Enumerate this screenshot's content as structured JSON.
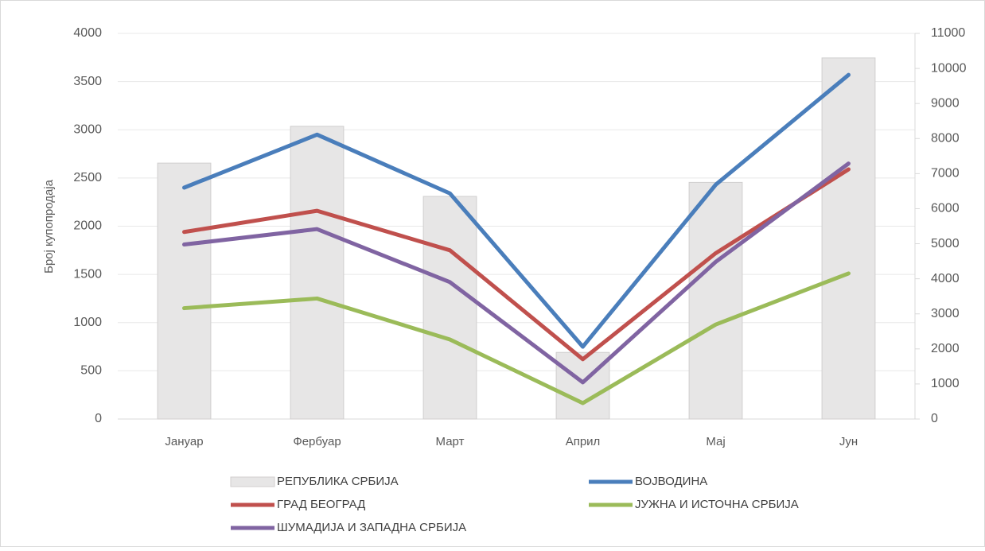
{
  "chart_data": {
    "type": "bar-line",
    "y_label": "Број купопродаја",
    "categories": [
      "Јануар",
      "Фербуар",
      "Март",
      "Април",
      "Мај",
      "Јун"
    ],
    "series": [
      {
        "name": "РЕПУБЛИКА СРБИЈА",
        "type": "bar",
        "axis": "y2",
        "color": "#e7e6e6",
        "values": [
          7300,
          8350,
          6350,
          1900,
          6750,
          10300
        ]
      },
      {
        "name": "ВОЈВОДИНА",
        "type": "line",
        "color": "#4a7ebb",
        "values": [
          2400,
          2950,
          2340,
          750,
          2430,
          3570
        ]
      },
      {
        "name": "ГРАД БЕОГРАД",
        "type": "line",
        "color": "#c0504d",
        "values": [
          1940,
          2160,
          1750,
          620,
          1720,
          2590
        ]
      },
      {
        "name": "ЈУЖНА И ИСТОЧНА СРБИЈА",
        "type": "line",
        "color": "#9bbb59",
        "values": [
          1150,
          1250,
          825,
          165,
          980,
          1510
        ]
      },
      {
        "name": "ШУМАДИЈА И ЗАПАДНА СРБИЈА",
        "type": "line",
        "color": "#8064a2",
        "values": [
          1810,
          1970,
          1420,
          380,
          1630,
          2650
        ]
      }
    ],
    "ylim": [
      0,
      4000
    ],
    "yticks": [
      0,
      500,
      1000,
      1500,
      2000,
      2500,
      3000,
      3500,
      4000
    ],
    "y2lim": [
      0,
      11000
    ],
    "y2ticks": [
      0,
      1000,
      2000,
      3000,
      4000,
      5000,
      6000,
      7000,
      8000,
      9000,
      10000,
      11000
    ],
    "grid": true,
    "legend": "bottom"
  }
}
